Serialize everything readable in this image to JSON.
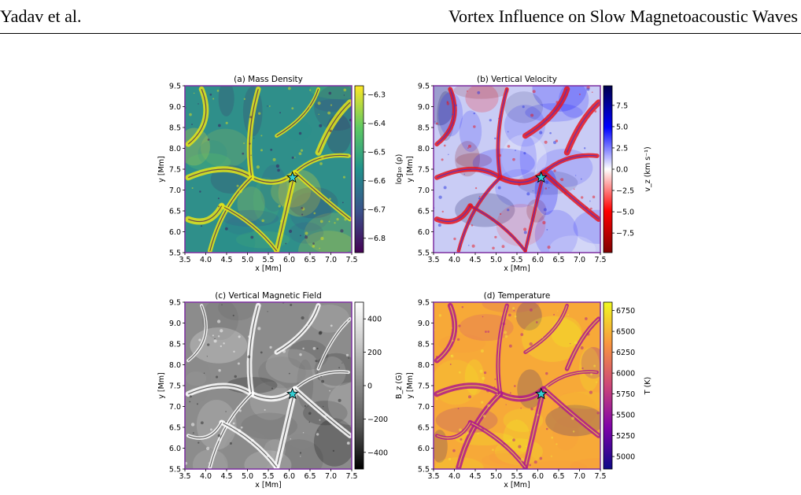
{
  "header": {
    "authors": "Yadav et al.",
    "running_title": "Vortex Influence on Slow Magnetoacoustic Waves"
  },
  "figure": {
    "panels": [
      {
        "id": "a",
        "title": "(a) Mass Density",
        "map_colormap": "viridis",
        "colors": [
          "#440154",
          "#3b528b",
          "#21918c",
          "#5ec962",
          "#fde725"
        ],
        "dominant_color": "#2f8f8a",
        "ridge_color": "#e4e419",
        "pit_color": "#3b0f5a",
        "xlabel": "x [Mm]",
        "ylabel": "y [Mm]",
        "xlim": [
          3.5,
          7.5
        ],
        "ylim": [
          5.5,
          9.5
        ],
        "xticks": [
          "3.5",
          "4.0",
          "4.5",
          "5.0",
          "5.5",
          "6.0",
          "6.5",
          "7.0",
          "7.5"
        ],
        "yticks": [
          "5.5",
          "6.0",
          "6.5",
          "7.0",
          "7.5",
          "8.0",
          "8.5",
          "9.0",
          "9.5"
        ],
        "cbar_label": "log₁₀ (ρ)",
        "cbar_range": [
          -6.85,
          -6.27
        ],
        "cbar_ticks": [
          -6.3,
          -6.4,
          -6.5,
          -6.6,
          -6.7,
          -6.8
        ],
        "cbar_ticklabels": [
          "−6.3",
          "−6.4",
          "−6.5",
          "−6.6",
          "−6.7",
          "−6.8"
        ],
        "marker": {
          "x": 6.08,
          "y": 7.3,
          "shape": "star-icon",
          "color": "#35d0d5"
        }
      },
      {
        "id": "b",
        "title": "(b) Vertical Velocity",
        "map_colormap": "seismic_r",
        "colors": [
          "#7f0000",
          "#ff0000",
          "#ffffff",
          "#0000ff",
          "#00004c"
        ],
        "dominant_color": "#c9ccf5",
        "ridge_color": "#e8141c",
        "pit_color": "#2a35e0",
        "xlabel": "x [Mm]",
        "ylabel": "y [Mm]",
        "xlim": [
          3.5,
          7.5
        ],
        "ylim": [
          5.5,
          9.5
        ],
        "xticks": [
          "3.5",
          "4.0",
          "4.5",
          "5.0",
          "5.5",
          "6.0",
          "6.5",
          "7.0",
          "7.5"
        ],
        "yticks": [
          "5.5",
          "6.0",
          "6.5",
          "7.0",
          "7.5",
          "8.0",
          "8.5",
          "9.0",
          "9.5"
        ],
        "cbar_label": "v_z (km s⁻¹)",
        "cbar_range": [
          -9.8,
          9.8
        ],
        "cbar_ticks": [
          7.5,
          5.0,
          2.5,
          0.0,
          -2.5,
          -5.0,
          -7.5
        ],
        "cbar_ticklabels": [
          "7.5",
          "5.0",
          "2.5",
          "0.0",
          "−2.5",
          "−5.0",
          "−7.5"
        ],
        "marker": {
          "x": 6.08,
          "y": 7.3,
          "shape": "star-icon",
          "color": "#35d0d5"
        }
      },
      {
        "id": "c",
        "title": "(c) Vertical Magnetic Field",
        "map_colormap": "gray",
        "colors": [
          "#000000",
          "#555555",
          "#8a8a8a",
          "#c8c8c8",
          "#ffffff"
        ],
        "dominant_color": "#8c8c8c",
        "ridge_color": "#ffffff",
        "pit_color": "#2a2a2a",
        "xlabel": "x [Mm]",
        "ylabel": "y [Mm]",
        "xlim": [
          3.5,
          7.5
        ],
        "ylim": [
          5.5,
          9.5
        ],
        "xticks": [
          "3.5",
          "4.0",
          "4.5",
          "5.0",
          "5.5",
          "6.0",
          "6.5",
          "7.0",
          "7.5"
        ],
        "yticks": [
          "5.5",
          "6.0",
          "6.5",
          "7.0",
          "7.5",
          "8.0",
          "8.5",
          "9.0",
          "9.5"
        ],
        "cbar_label": "B_z (G)",
        "cbar_range": [
          -500,
          500
        ],
        "cbar_ticks": [
          400,
          200,
          0,
          -200,
          -400
        ],
        "cbar_ticklabels": [
          "400",
          "200",
          "0",
          "−200",
          "−400"
        ],
        "marker": {
          "x": 6.08,
          "y": 7.3,
          "shape": "star-icon",
          "color": "#35d0d5"
        }
      },
      {
        "id": "d",
        "title": "(d) Temperature",
        "map_colormap": "plasma",
        "colors": [
          "#0d0887",
          "#7e03a8",
          "#cc4778",
          "#f89540",
          "#f0f921"
        ],
        "dominant_color": "#f7a938",
        "ridge_color": "#b01b8a",
        "pit_color": "#f6e63a",
        "xlabel": "x [Mm]",
        "ylabel": "y [Mm]",
        "xlim": [
          3.5,
          7.5
        ],
        "ylim": [
          5.5,
          9.5
        ],
        "xticks": [
          "3.5",
          "4.0",
          "4.5",
          "5.0",
          "5.5",
          "6.0",
          "6.5",
          "7.0",
          "7.5"
        ],
        "yticks": [
          "5.5",
          "6.0",
          "6.5",
          "7.0",
          "7.5",
          "8.0",
          "8.5",
          "9.0",
          "9.5"
        ],
        "cbar_label": "T (K)",
        "cbar_range": [
          4850,
          6850
        ],
        "cbar_ticks": [
          6750,
          6500,
          6250,
          6000,
          5750,
          5500,
          5250,
          5000
        ],
        "cbar_ticklabels": [
          "6750",
          "6500",
          "6250",
          "6000",
          "5750",
          "5500",
          "5250",
          "5000"
        ],
        "marker": {
          "x": 6.08,
          "y": 7.3,
          "shape": "star-icon",
          "color": "#35d0d5"
        }
      }
    ]
  }
}
